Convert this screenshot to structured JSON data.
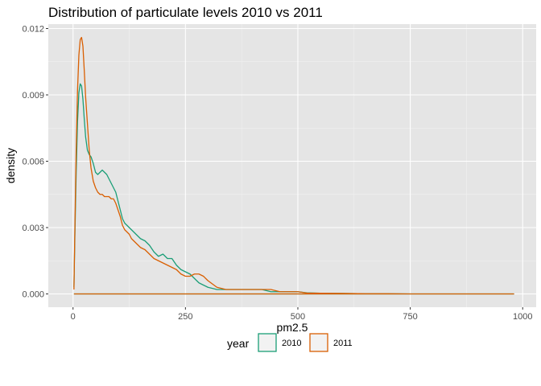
{
  "chart_data": {
    "type": "line",
    "title": "Distribution of particulate levels 2010 vs 2011",
    "xlabel": "pm2.5",
    "ylabel": "density",
    "xlim": [
      -55,
      1030
    ],
    "ylim": [
      -0.0006,
      0.0122
    ],
    "x_ticks": [
      0,
      250,
      500,
      750,
      1000
    ],
    "x_tick_labels": [
      "0",
      "250",
      "500",
      "750",
      "1000"
    ],
    "y_ticks": [
      0,
      0.003,
      0.006,
      0.009,
      0.012
    ],
    "y_tick_labels": [
      "0.000",
      "0.003",
      "0.006",
      "0.009",
      "0.012"
    ],
    "grid": true,
    "legend": {
      "title": "year",
      "placement": "bottom"
    },
    "colors": {
      "panel": "#e5e5e5",
      "grid_major": "#ffffff",
      "grid_minor": "#f2f2f2"
    },
    "series": [
      {
        "name": "2010",
        "color": "#1b9e77",
        "x": [
          2,
          4,
          7,
          10,
          13,
          16,
          19,
          22,
          25,
          28,
          32,
          36,
          40,
          45,
          50,
          55,
          60,
          65,
          70,
          75,
          80,
          85,
          90,
          95,
          100,
          105,
          110,
          115,
          120,
          125,
          130,
          140,
          150,
          160,
          170,
          180,
          190,
          200,
          210,
          220,
          230,
          240,
          250,
          260,
          270,
          280,
          290,
          300,
          320,
          340,
          360,
          380,
          400,
          420,
          440,
          460,
          480,
          500,
          520,
          550,
          600,
          650,
          700,
          750,
          800,
          850,
          900,
          950,
          980,
          980,
          2
        ],
        "y": [
          0.0003,
          0.0025,
          0.0055,
          0.0078,
          0.0091,
          0.0095,
          0.0094,
          0.0088,
          0.0079,
          0.0071,
          0.0065,
          0.0063,
          0.0062,
          0.0059,
          0.0055,
          0.0054,
          0.0055,
          0.0056,
          0.0055,
          0.0054,
          0.0052,
          0.005,
          0.0048,
          0.0046,
          0.0042,
          0.0038,
          0.0034,
          0.0032,
          0.0031,
          0.003,
          0.0029,
          0.0027,
          0.0025,
          0.0024,
          0.0022,
          0.0019,
          0.0017,
          0.0018,
          0.0016,
          0.0016,
          0.0013,
          0.0011,
          0.001,
          0.0009,
          0.0007,
          0.0005,
          0.0004,
          0.0003,
          0.0002,
          0.0002,
          0.0002,
          0.0002,
          0.0002,
          0.0002,
          0.0001,
          0.0001,
          0.0001,
          0.0001,
          5e-05,
          3e-05,
          2e-05,
          1e-05,
          1e-05,
          0.0,
          0.0,
          0.0,
          0.0,
          0.0,
          0.0,
          0.0,
          0.0
        ]
      },
      {
        "name": "2011",
        "color": "#d95f02",
        "x": [
          2,
          4,
          7,
          10,
          13,
          16,
          19,
          22,
          25,
          28,
          32,
          36,
          40,
          45,
          50,
          55,
          60,
          65,
          70,
          75,
          80,
          85,
          90,
          95,
          100,
          105,
          110,
          115,
          120,
          125,
          130,
          140,
          150,
          160,
          170,
          180,
          190,
          200,
          210,
          220,
          230,
          240,
          250,
          260,
          270,
          280,
          290,
          300,
          320,
          340,
          360,
          380,
          400,
          420,
          440,
          460,
          480,
          500,
          520,
          550,
          600,
          650,
          700,
          750,
          800,
          850,
          900,
          950,
          980,
          980,
          2
        ],
        "y": [
          0.0002,
          0.0028,
          0.0065,
          0.0092,
          0.0108,
          0.0115,
          0.0116,
          0.0112,
          0.0101,
          0.0089,
          0.0077,
          0.0065,
          0.0057,
          0.0051,
          0.0048,
          0.0046,
          0.0045,
          0.0045,
          0.0044,
          0.0044,
          0.0044,
          0.0043,
          0.0043,
          0.0041,
          0.0038,
          0.0035,
          0.0031,
          0.0029,
          0.0028,
          0.0027,
          0.0025,
          0.0023,
          0.0021,
          0.002,
          0.0018,
          0.0016,
          0.0015,
          0.0014,
          0.0013,
          0.0012,
          0.0011,
          0.0009,
          0.0008,
          0.0008,
          0.0009,
          0.0009,
          0.0008,
          0.0006,
          0.0003,
          0.0002,
          0.0002,
          0.0002,
          0.0002,
          0.0002,
          0.0002,
          0.0001,
          0.0001,
          0.0001,
          4e-05,
          3e-05,
          2e-05,
          1e-05,
          1e-05,
          0.0,
          0.0,
          0.0,
          0.0,
          0.0,
          0.0,
          0.0,
          0.0
        ]
      }
    ]
  }
}
